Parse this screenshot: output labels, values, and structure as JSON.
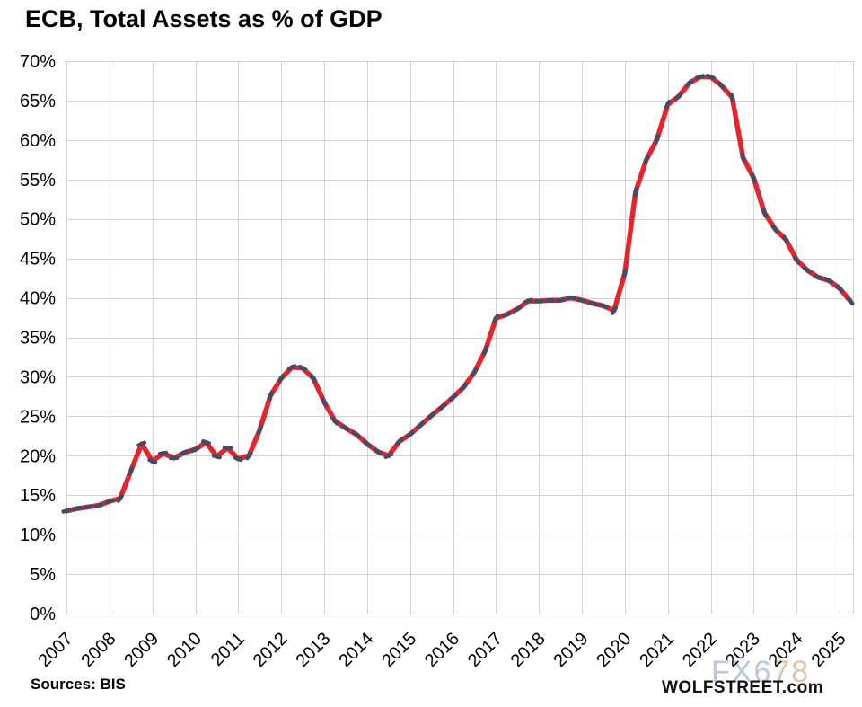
{
  "header": {
    "title": "ECB, Total Assets as % of GDP"
  },
  "footer": {
    "source_note": "Sources: BIS",
    "brand": "WOLFSTREET.com",
    "watermark_part1": "FX6",
    "watermark_part2": "78"
  },
  "colors": {
    "line_red": "#E8232B",
    "marker_navy": "#3E4E66",
    "gridline_gray": "#D2D2D2",
    "text_black": "#000000",
    "watermark_blue": "#b4c3d6",
    "watermark_tan": "#d8c0a4"
  },
  "chart_data": {
    "type": "line",
    "title": "ECB, Total Assets as % of GDP",
    "xlabel": "",
    "ylabel": "",
    "grid": true,
    "legend": "none",
    "frequency": "quarterly",
    "x_start": "2007-Q1",
    "x_end": "2025-Q2",
    "ylim": [
      0,
      70
    ],
    "y_tick_values": [
      70,
      65,
      60,
      55,
      50,
      45,
      40,
      35,
      30,
      25,
      20,
      15,
      10,
      5,
      0
    ],
    "y_tick_labels": [
      "70%",
      "65%",
      "60%",
      "55%",
      "50%",
      "45%",
      "40%",
      "35%",
      "30%",
      "25%",
      "20%",
      "15%",
      "10%",
      "5%",
      "0%"
    ],
    "year_ticks": [
      "2007",
      "2008",
      "2009",
      "2010",
      "2011",
      "2012",
      "2013",
      "2014",
      "2015",
      "2016",
      "2017",
      "2018",
      "2019",
      "2020",
      "2021",
      "2022",
      "2023",
      "2024",
      "2025"
    ],
    "series": [
      {
        "name": "ECB total assets as % of GDP",
        "values": [
          13.0,
          13.3,
          13.5,
          13.7,
          14.2,
          14.6,
          18.1,
          21.5,
          19.3,
          20.3,
          19.7,
          20.4,
          20.8,
          21.7,
          19.9,
          21.0,
          19.6,
          20.0,
          23.3,
          27.6,
          29.8,
          31.2,
          31.1,
          29.8,
          26.8,
          24.4,
          23.5,
          22.7,
          21.5,
          20.5,
          20.0,
          21.8,
          22.7,
          23.9,
          25.1,
          26.2,
          27.4,
          28.7,
          30.6,
          33.3,
          37.4,
          37.9,
          38.6,
          39.6,
          39.6,
          39.7,
          39.7,
          40.0,
          39.7,
          39.3,
          39.0,
          38.4,
          43.1,
          53.4,
          57.5,
          60.1,
          64.5,
          65.5,
          67.2,
          68.0,
          68.0,
          66.9,
          65.4,
          57.8,
          55.2,
          50.8,
          48.7,
          47.4,
          44.8,
          43.5,
          42.6,
          42.2,
          41.2,
          39.6
        ]
      }
    ]
  }
}
